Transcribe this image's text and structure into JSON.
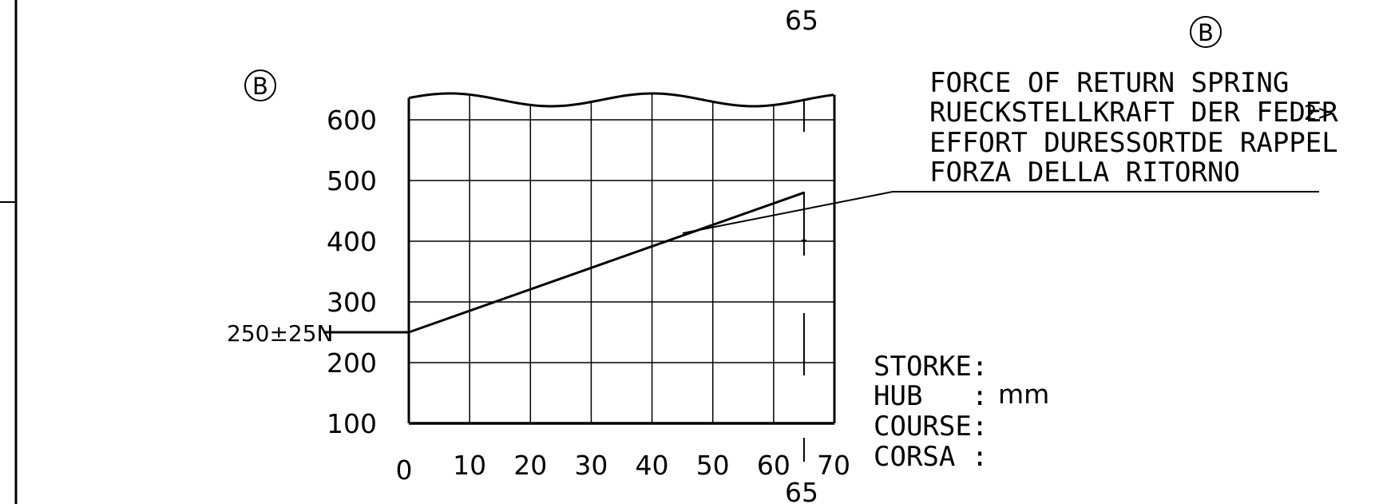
{
  "chart_data": {
    "type": "line",
    "title": "",
    "xlabel": "",
    "ylabel": "",
    "xlim": [
      0,
      70
    ],
    "ylim": [
      100,
      650
    ],
    "x_ticks": [
      "0",
      "10",
      "20",
      "30",
      "40",
      "50",
      "60",
      "70"
    ],
    "y_ticks": [
      "100",
      "200",
      "300",
      "400",
      "500",
      "600"
    ],
    "grid": true,
    "series": [
      {
        "x": [
          0,
          65
        ],
        "y": [
          250,
          480
        ]
      }
    ],
    "start_label": "250±25N",
    "stroke_value_top": "65",
    "stroke_value_bottom": "65",
    "section_marker_left": "B",
    "section_marker_right": "B",
    "legend_lines": [
      "FORCE OF RETURN SPRING",
      "RUECKSTELLKRAFT DER FEDER",
      "EFFORT DURESSORTDE RAPPEL",
      "FORZA DELLA RITORNO"
    ],
    "legend_ref": "2>",
    "stroke_labels": [
      "STORKE:",
      "HUB   :",
      "COURSE:",
      "CORSA :"
    ],
    "stroke_unit": "mm"
  }
}
